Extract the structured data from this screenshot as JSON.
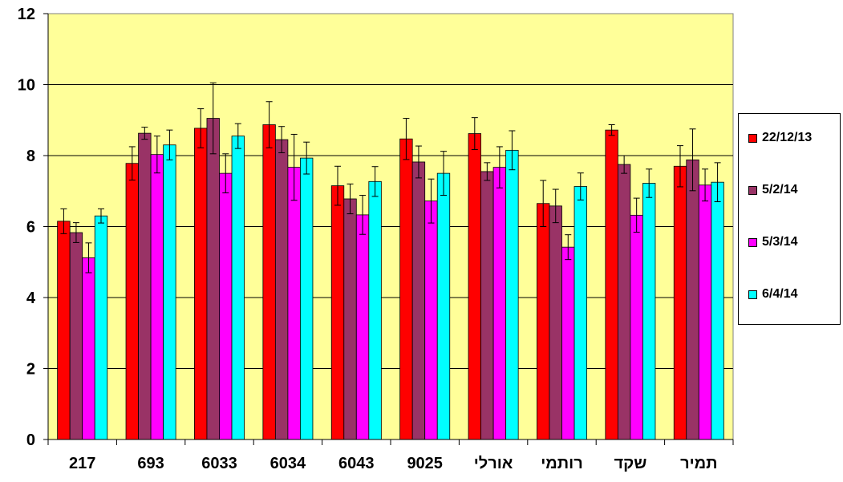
{
  "chart_data": {
    "type": "bar",
    "title": "",
    "xlabel": "",
    "ylabel": "",
    "ylim": [
      0,
      12
    ],
    "yticks": [
      0,
      2,
      4,
      6,
      8,
      10,
      12
    ],
    "grid": true,
    "plot_background": "#FFFF99",
    "legend_position": "right",
    "categories": [
      "217",
      "693",
      "6033",
      "6034",
      "6043",
      "9025",
      "אורלי",
      "רותמי",
      "שקד",
      "תמיר"
    ],
    "series": [
      {
        "name": "22/12/13",
        "color": "#FF0000",
        "values": [
          6.15,
          7.78,
          8.77,
          8.87,
          7.15,
          8.47,
          8.62,
          6.65,
          8.72,
          7.7
        ],
        "errors": [
          0.35,
          0.47,
          0.55,
          0.65,
          0.55,
          0.58,
          0.45,
          0.65,
          0.15,
          0.58
        ]
      },
      {
        "name": "5/2/14",
        "color": "#993366",
        "values": [
          5.83,
          8.63,
          9.05,
          8.45,
          6.78,
          7.82,
          7.55,
          6.58,
          7.75,
          7.88
        ],
        "errors": [
          0.28,
          0.17,
          1.0,
          0.37,
          0.42,
          0.45,
          0.25,
          0.47,
          0.25,
          0.87
        ]
      },
      {
        "name": "5/3/14",
        "color": "#FF00FF",
        "values": [
          5.12,
          8.03,
          7.5,
          7.67,
          6.33,
          6.72,
          7.67,
          5.42,
          6.32,
          7.17
        ],
        "errors": [
          0.42,
          0.52,
          0.55,
          0.93,
          0.55,
          0.62,
          0.58,
          0.35,
          0.48,
          0.45
        ]
      },
      {
        "name": "6/4/14",
        "color": "#00FFFF",
        "values": [
          6.3,
          8.3,
          8.55,
          7.93,
          7.27,
          7.5,
          8.15,
          7.13,
          7.22,
          7.25
        ],
        "errors": [
          0.2,
          0.42,
          0.35,
          0.45,
          0.42,
          0.62,
          0.55,
          0.38,
          0.4,
          0.55
        ]
      }
    ]
  }
}
